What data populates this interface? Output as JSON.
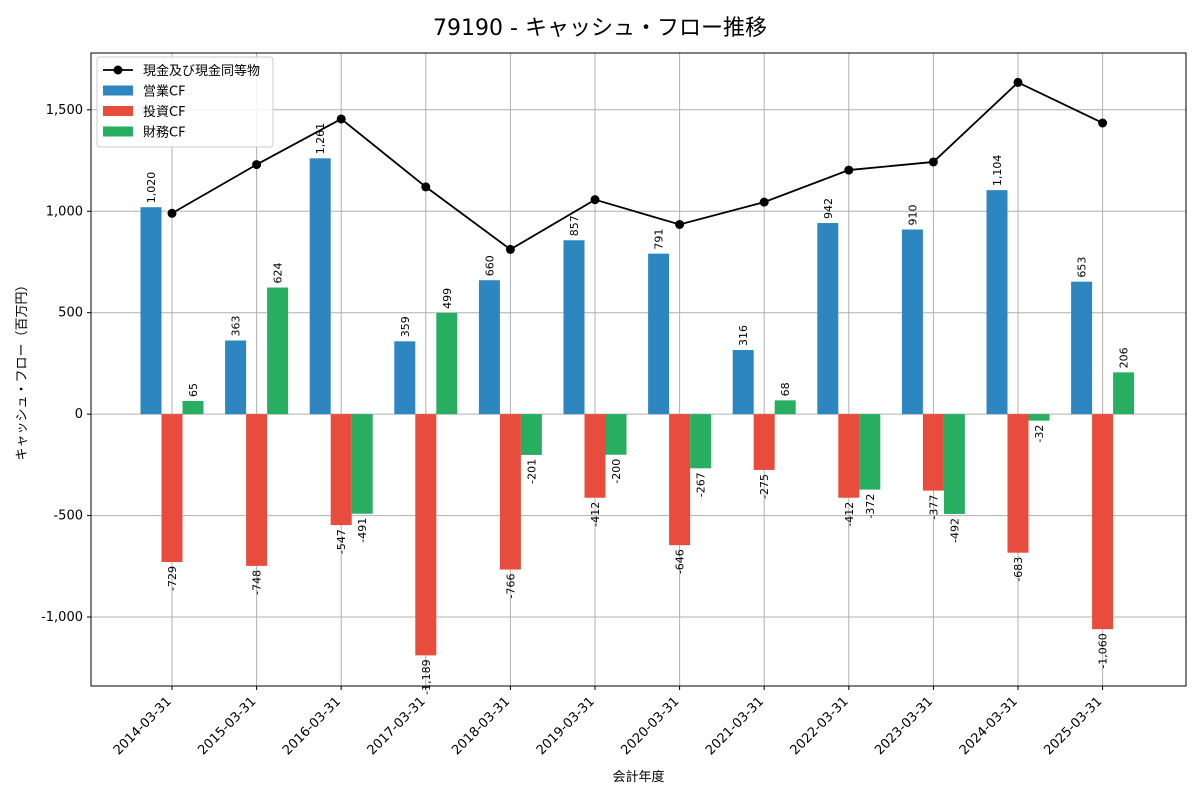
{
  "chart_data": {
    "type": "bar",
    "title": "79190 - キャッシュ・フロー推移",
    "xlabel": "会計年度",
    "ylabel": "キャッシュ・フロー（百万円）",
    "ylim": [
      -1340,
      1780
    ],
    "yticks": [
      -1000,
      -500,
      0,
      500,
      1000,
      1500
    ],
    "ytick_labels": [
      "-1,000",
      "-500",
      "0",
      "500",
      "1,000",
      "1,500"
    ],
    "grid": true,
    "legend_position": "top-left",
    "categories": [
      "2014-03-31",
      "2015-03-31",
      "2016-03-31",
      "2017-03-31",
      "2018-03-31",
      "2019-03-31",
      "2020-03-31",
      "2021-03-31",
      "2022-03-31",
      "2023-03-31",
      "2024-03-31",
      "2025-03-31"
    ],
    "series": [
      {
        "name": "営業CF",
        "type": "bar",
        "color": "#2e86c1",
        "values": [
          1020,
          363,
          1261,
          359,
          660,
          857,
          791,
          316,
          942,
          910,
          1104,
          653
        ],
        "labels": [
          "1,020",
          "363",
          "1,261",
          "359",
          "660",
          "857",
          "791",
          "316",
          "942",
          "910",
          "1,104",
          "653"
        ]
      },
      {
        "name": "投資CF",
        "type": "bar",
        "color": "#e74c3c",
        "values": [
          -729,
          -748,
          -547,
          -1189,
          -766,
          -412,
          -646,
          -275,
          -412,
          -377,
          -683,
          -1060
        ],
        "labels": [
          "-729",
          "-748",
          "-547",
          "-1,189",
          "-766",
          "-412",
          "-646",
          "-275",
          "-412",
          "-377",
          "-683",
          "-1,060"
        ]
      },
      {
        "name": "財務CF",
        "type": "bar",
        "color": "#27ae60",
        "values": [
          65,
          624,
          -491,
          499,
          -201,
          -200,
          -267,
          68,
          -372,
          -492,
          -32,
          206
        ],
        "labels": [
          "65",
          "624",
          "-491",
          "499",
          "-201",
          "-200",
          "-267",
          "68",
          "-372",
          "-492",
          "-32",
          "206"
        ]
      },
      {
        "name": "現金及び現金同等物",
        "type": "line",
        "color": "#000000",
        "values": [
          990,
          1230,
          1455,
          1120,
          812,
          1057,
          935,
          1045,
          1203,
          1243,
          1635,
          1435
        ]
      }
    ]
  }
}
